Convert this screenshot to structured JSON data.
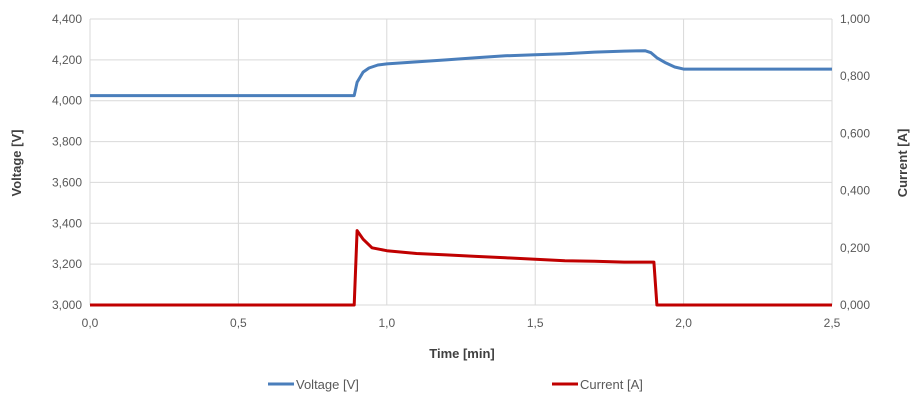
{
  "chart_data": {
    "type": "line",
    "xlabel": "Time [min]",
    "ylabel": "Voltage [V]",
    "y2label": "Current [A]",
    "xlim": [
      0,
      2.5
    ],
    "ylim": [
      3000,
      4400
    ],
    "y2lim": [
      0,
      1
    ],
    "x_ticks": [
      "0,0",
      "0,5",
      "1,0",
      "1,5",
      "2,0",
      "2,5"
    ],
    "y_ticks": [
      "3,000",
      "3,200",
      "3,400",
      "3,600",
      "3,800",
      "4,000",
      "4,200",
      "4,400"
    ],
    "y2_ticks": [
      "0,000",
      "0,200",
      "0,400",
      "0,600",
      "0,800",
      "1,000"
    ],
    "grid": true,
    "legend_position": "bottom",
    "series": [
      {
        "name": "Voltage [V]",
        "axis": "left",
        "color": "#4a7ebb",
        "x": [
          0,
          0.5,
          0.89,
          0.9,
          0.92,
          0.94,
          0.97,
          1.0,
          1.1,
          1.2,
          1.3,
          1.4,
          1.5,
          1.6,
          1.7,
          1.8,
          1.87,
          1.89,
          1.91,
          1.94,
          1.97,
          2.0,
          2.2,
          2.5
        ],
        "values": [
          4025,
          4025,
          4025,
          4090,
          4140,
          4160,
          4175,
          4180,
          4190,
          4200,
          4210,
          4220,
          4225,
          4230,
          4238,
          4243,
          4245,
          4235,
          4210,
          4185,
          4165,
          4155,
          4155,
          4155
        ]
      },
      {
        "name": "Current [A]",
        "axis": "right",
        "color": "#c00000",
        "x": [
          0,
          0.5,
          0.89,
          0.9,
          0.92,
          0.95,
          1.0,
          1.1,
          1.2,
          1.3,
          1.4,
          1.5,
          1.6,
          1.7,
          1.8,
          1.85,
          1.88,
          1.9,
          1.91,
          2.0,
          2.5
        ],
        "values": [
          0,
          0,
          0,
          0.26,
          0.23,
          0.2,
          0.19,
          0.18,
          0.175,
          0.17,
          0.165,
          0.16,
          0.155,
          0.153,
          0.15,
          0.15,
          0.15,
          0.15,
          0,
          0,
          0
        ]
      }
    ]
  }
}
